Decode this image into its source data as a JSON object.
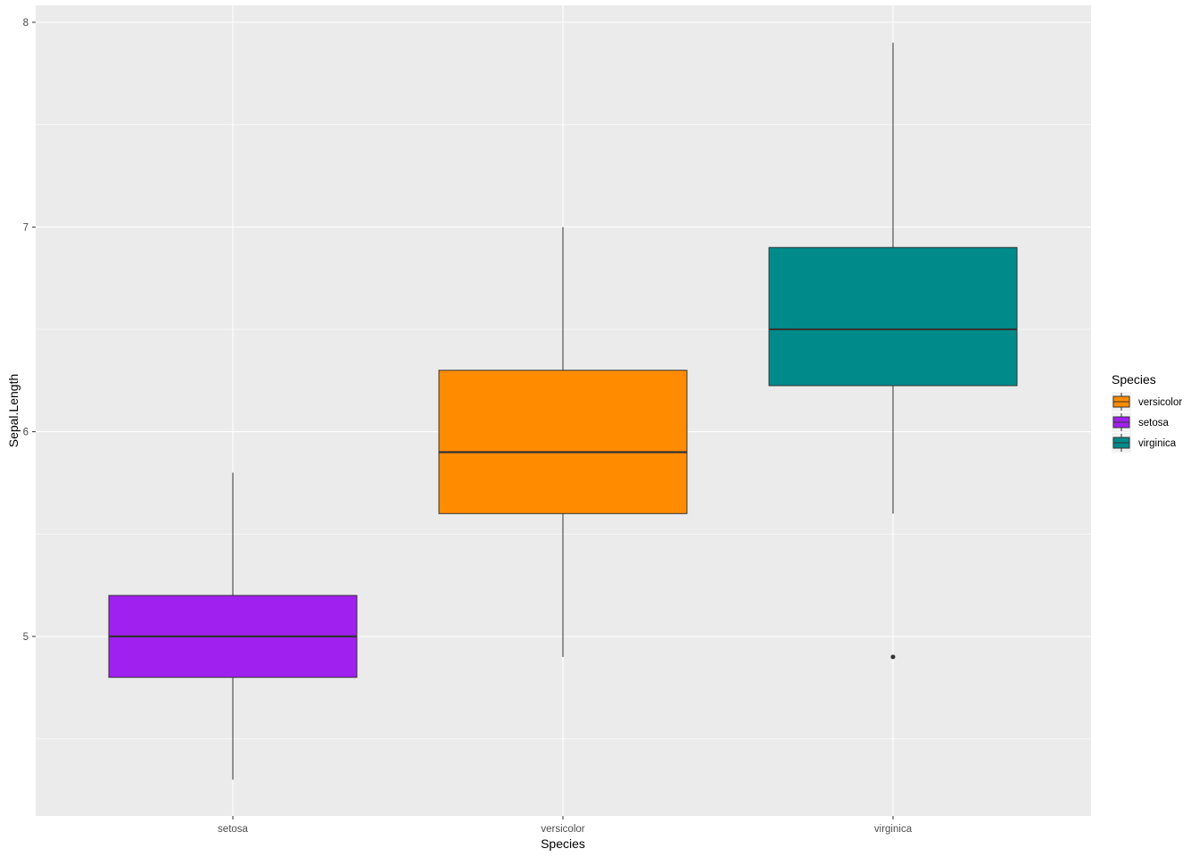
{
  "chart_data": {
    "type": "boxplot",
    "xlabel": "Species",
    "ylabel": "Sepal.Length",
    "categories": [
      "setosa",
      "versicolor",
      "virginica"
    ],
    "ylim": [
      4.2,
      8.08
    ],
    "yticks": [
      5,
      6,
      7,
      8
    ],
    "grid": true,
    "legend": {
      "title": "Species",
      "placement": "right",
      "entries": [
        {
          "label": "versicolor",
          "color": "#FF8C00"
        },
        {
          "label": "setosa",
          "color": "#A020F0"
        },
        {
          "label": "virginica",
          "color": "#008B8B"
        }
      ]
    },
    "boxes": [
      {
        "category": "setosa",
        "color": "#A020F0",
        "whisker_low": 4.3,
        "q1": 4.8,
        "median": 5.0,
        "q3": 5.2,
        "whisker_high": 5.8,
        "outliers": []
      },
      {
        "category": "versicolor",
        "color": "#FF8C00",
        "whisker_low": 4.9,
        "q1": 5.6,
        "median": 5.9,
        "q3": 6.3,
        "whisker_high": 7.0,
        "outliers": []
      },
      {
        "category": "virginica",
        "color": "#008B8B",
        "whisker_low": 5.6,
        "q1": 6.225,
        "median": 6.5,
        "q3": 6.9,
        "whisker_high": 7.9,
        "outliers": [
          4.9
        ]
      }
    ]
  }
}
